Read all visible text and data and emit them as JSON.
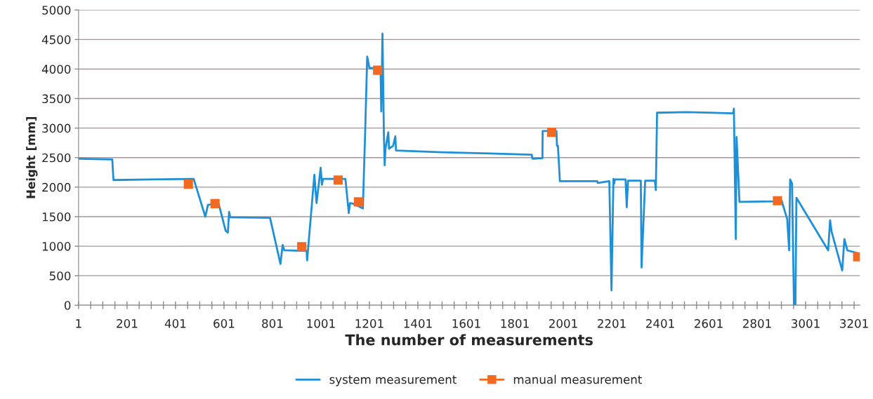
{
  "chart_data": {
    "type": "line",
    "xlabel": "The number of measurements",
    "ylabel": "Height [mm]",
    "xlim": [
      1,
      3225
    ],
    "ylim": [
      0,
      5000
    ],
    "xticks": [
      1,
      {
        "value": 51,
        "label": null
      },
      {
        "value": 101,
        "label": null
      },
      {
        "value": 151,
        "label": null
      },
      201,
      {
        "value": 251,
        "label": null
      },
      {
        "value": 301,
        "label": null
      },
      {
        "value": 351,
        "label": null
      },
      401,
      {
        "value": 451,
        "label": null
      },
      {
        "value": 501,
        "label": null
      },
      {
        "value": 551,
        "label": null
      },
      601,
      {
        "value": 651,
        "label": null
      },
      {
        "value": 701,
        "label": null
      },
      {
        "value": 751,
        "label": null
      },
      801,
      {
        "value": 851,
        "label": null
      },
      {
        "value": 901,
        "label": null
      },
      {
        "value": 951,
        "label": null
      },
      1001,
      {
        "value": 1051,
        "label": null
      },
      {
        "value": 1101,
        "label": null
      },
      {
        "value": 1151,
        "label": null
      },
      1201,
      {
        "value": 1251,
        "label": null
      },
      {
        "value": 1301,
        "label": null
      },
      {
        "value": 1351,
        "label": null
      },
      1401,
      {
        "value": 1451,
        "label": null
      },
      {
        "value": 1501,
        "label": null
      },
      {
        "value": 1551,
        "label": null
      },
      1601,
      {
        "value": 1651,
        "label": null
      },
      {
        "value": 1701,
        "label": null
      },
      {
        "value": 1751,
        "label": null
      },
      1801,
      {
        "value": 1851,
        "label": null
      },
      {
        "value": 1901,
        "label": null
      },
      {
        "value": 1951,
        "label": null
      },
      2001,
      {
        "value": 2051,
        "label": null
      },
      {
        "value": 2101,
        "label": null
      },
      {
        "value": 2151,
        "label": null
      },
      2201,
      {
        "value": 2251,
        "label": null
      },
      {
        "value": 2301,
        "label": null
      },
      {
        "value": 2351,
        "label": null
      },
      2401,
      {
        "value": 2451,
        "label": null
      },
      {
        "value": 2501,
        "label": null
      },
      {
        "value": 2551,
        "label": null
      },
      2601,
      {
        "value": 2651,
        "label": null
      },
      {
        "value": 2701,
        "label": null
      },
      {
        "value": 2751,
        "label": null
      },
      2801,
      {
        "value": 2851,
        "label": null
      },
      {
        "value": 2901,
        "label": null
      },
      {
        "value": 2951,
        "label": null
      },
      3001,
      {
        "value": 3051,
        "label": null
      },
      {
        "value": 3101,
        "label": null
      },
      {
        "value": 3151,
        "label": null
      },
      3201
    ],
    "yticks": [
      0,
      500,
      1000,
      1500,
      2000,
      2500,
      3000,
      3500,
      4000,
      4500,
      5000
    ],
    "grid": "y",
    "legend": "bottom",
    "series": [
      {
        "name": "system measurement",
        "color": "#1e90d8",
        "marker": "none",
        "line_style": "solid",
        "x": [
          1,
          140,
          145,
          300,
          476,
          524,
          535,
          579,
          608,
          617,
          622,
          627,
          791,
          834,
          843,
          850,
          942,
          944,
          974,
          983,
          1000,
          1005,
          1010,
          1102,
          1116,
          1121,
          1134,
          1174,
          1183,
          1192,
          1201,
          1247,
          1250,
          1255,
          1261,
          1264,
          1267,
          1279,
          1282,
          1299,
          1308,
          1311,
          1500,
          1700,
          1871,
          1874,
          1915,
          1916,
          1973,
          1975,
          1979,
          1987,
          2141,
          2143,
          2191,
          2200,
          2208,
          2211,
          2214,
          2258,
          2263,
          2268,
          2321,
          2324,
          2339,
          2379,
          2383,
          2388,
          2510,
          2702,
          2705,
          2713,
          2716,
          2728,
          2867,
          2902,
          2925,
          2933,
          2937,
          2945,
          2953,
          2959,
          2963,
          3094,
          3102,
          3108,
          3152,
          3161,
          3173,
          3216
        ],
        "values": [
          2480,
          2470,
          2120,
          2130,
          2140,
          1500,
          1700,
          1720,
          1260,
          1230,
          1580,
          1490,
          1480,
          700,
          1020,
          930,
          920,
          760,
          2210,
          1730,
          2330,
          2040,
          2140,
          2140,
          1560,
          1730,
          1720,
          1640,
          2850,
          4210,
          4020,
          4000,
          3280,
          4600,
          2870,
          2370,
          2640,
          2930,
          2650,
          2700,
          2860,
          2620,
          2590,
          2570,
          2550,
          2480,
          2490,
          2950,
          2950,
          2700,
          2700,
          2100,
          2100,
          2070,
          2100,
          250,
          2140,
          2060,
          2130,
          2130,
          1660,
          2110,
          2110,
          640,
          2110,
          2110,
          1950,
          3260,
          3270,
          3250,
          3330,
          1120,
          2850,
          1750,
          1760,
          1770,
          1460,
          930,
          2130,
          2060,
          0,
          0,
          1820,
          930,
          1440,
          1250,
          590,
          1120,
          930,
          880
        ]
      },
      {
        "name": "manual measurement",
        "type": "scatter",
        "color": "#f26a21",
        "marker": "square",
        "x": [
          454,
          564,
          922,
          1072,
          1156,
          1235,
          1953,
          2885,
          3216
        ],
        "values": [
          2050,
          1720,
          990,
          2120,
          1750,
          3980,
          2930,
          1770,
          820
        ]
      }
    ]
  }
}
